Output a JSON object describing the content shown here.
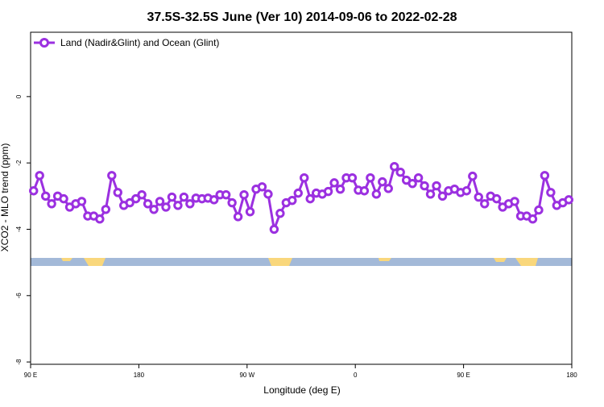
{
  "chart_data": {
    "type": "line",
    "title": "37.5S-32.5S June (Ver 10)   2014-09-06 to 2022-02-28",
    "x_label": "Longitude (deg E)",
    "y_label": "XCO2 - MLO trend (ppm)",
    "x": [
      92.5,
      97.5,
      102.5,
      107.5,
      112.5,
      117.5,
      122.5,
      127.5,
      132.5,
      137.5,
      142.5,
      147.5,
      152.5,
      157.5,
      162.5,
      167.5,
      172.5,
      177.5,
      182.5,
      187.5,
      192.5,
      197.5,
      202.5,
      207.5,
      212.5,
      217.5,
      222.5,
      227.5,
      232.5,
      237.5,
      242.5,
      247.5,
      252.5,
      257.5,
      262.5,
      267.5,
      272.5,
      277.5,
      282.5,
      287.5,
      292.5,
      297.5,
      302.5,
      307.5,
      312.5,
      317.5,
      322.5,
      327.5,
      332.5,
      337.5,
      342.5,
      347.5,
      352.5,
      357.5,
      362.5,
      367.5,
      372.5,
      377.5,
      382.5,
      387.5,
      392.5,
      397.5,
      402.5,
      407.5,
      412.5,
      417.5,
      422.5,
      427.5,
      432.5,
      437.5,
      442.5,
      447.5,
      452.5,
      457.5,
      462.5,
      467.5,
      472.5,
      477.5,
      482.5,
      487.5,
      492.5,
      497.5,
      502.5,
      507.5,
      512.5,
      517.5,
      522.5,
      527.5,
      532.5,
      537.5
    ],
    "series": [
      {
        "name": "Land (Nadir&Glint) and Ocean (Glint)",
        "color": "#9b30e0",
        "values": [
          -2.84,
          -2.38,
          -3.0,
          -3.23,
          -3.0,
          -3.08,
          -3.33,
          -3.23,
          -3.16,
          -3.6,
          -3.6,
          -3.69,
          -3.4,
          -2.38,
          -2.89,
          -3.28,
          -3.2,
          -3.08,
          -2.96,
          -3.23,
          -3.4,
          -3.16,
          -3.33,
          -3.03,
          -3.28,
          -3.03,
          -3.23,
          -3.06,
          -3.08,
          -3.06,
          -3.11,
          -2.96,
          -2.96,
          -3.2,
          -3.62,
          -2.96,
          -3.47,
          -2.79,
          -2.72,
          -2.94,
          -4.0,
          -3.52,
          -3.2,
          -3.13,
          -2.91,
          -2.45,
          -3.08,
          -2.91,
          -2.94,
          -2.86,
          -2.6,
          -2.79,
          -2.45,
          -2.45,
          -2.82,
          -2.84,
          -2.45,
          -2.94,
          -2.57,
          -2.77,
          -2.11,
          -2.28,
          -2.52,
          -2.62,
          -2.45,
          -2.69,
          -2.94,
          -2.69,
          -3.0,
          -2.84,
          -2.79,
          -2.89,
          -2.84,
          -2.4,
          -3.03,
          -3.23,
          -3.0,
          -3.08,
          -3.33,
          -3.23,
          -3.16,
          -3.6,
          -3.6,
          -3.69,
          -3.42,
          -2.38,
          -2.89,
          -3.28,
          -3.2,
          -3.11
        ]
      }
    ],
    "xlim": [
      90,
      540
    ],
    "xticks": [
      {
        "value": 90,
        "label": "90 E"
      },
      180,
      {
        "value": 270,
        "label": "90 W"
      },
      {
        "value": 360,
        "label": "0"
      },
      {
        "value": 450,
        "label": "90 E"
      },
      {
        "value": 540,
        "label": "180"
      }
    ],
    "ylim": [
      -8.07,
      1.94
    ],
    "yticks": [
      0,
      -2,
      -4,
      -6,
      -8
    ],
    "legend": "top-left"
  }
}
